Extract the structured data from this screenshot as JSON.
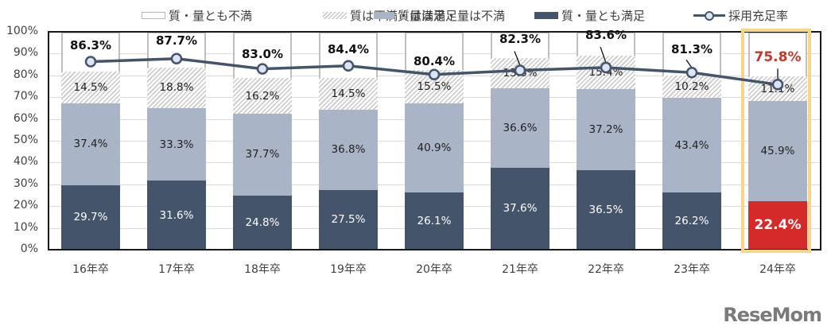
{
  "legend": {
    "items": [
      {
        "label": "質・量とも不満",
        "type": "white"
      },
      {
        "label": "質は不満・量は満足",
        "type": "hatch"
      },
      {
        "label": "質は満足・量は不満",
        "type": "light"
      },
      {
        "label": "質・量とも満足",
        "type": "dark"
      },
      {
        "label": "採用充足率",
        "type": "line"
      }
    ]
  },
  "y_ticks": [
    "100%",
    "90%",
    "80%",
    "70%",
    "60%",
    "50%",
    "40%",
    "30%",
    "20%",
    "10%",
    "0%"
  ],
  "categories": [
    "16年卒",
    "17年卒",
    "18年卒",
    "19年卒",
    "20年卒",
    "21年卒",
    "22年卒",
    "23年卒",
    "24年卒"
  ],
  "labels": {
    "dark": [
      "29.7%",
      "31.6%",
      "24.8%",
      "27.5%",
      "26.1%",
      "37.6%",
      "36.5%",
      "26.2%",
      "22.4%"
    ],
    "light": [
      "37.4%",
      "33.3%",
      "37.7%",
      "36.8%",
      "40.9%",
      "36.6%",
      "37.2%",
      "43.4%",
      "45.9%"
    ],
    "hatch": [
      "14.5%",
      "18.8%",
      "16.2%",
      "14.5%",
      "15.5%",
      "13.6%",
      "15.4%",
      "10.2%",
      "11.1%"
    ],
    "rate": [
      "86.3%",
      "87.7%",
      "83.0%",
      "84.4%",
      "80.4%",
      "82.3%",
      "83.6%",
      "81.3%",
      "75.8%"
    ]
  },
  "colors": {
    "dark": "#44546a",
    "light": "#a9b4c6",
    "hatch": "#c8c8c8",
    "highlight_bar": "#d42a2a",
    "highlight_box": "#f7d58a",
    "highlight_text": "#c0392b",
    "line": "#44546a",
    "marker_fill": "#dbe5f5"
  },
  "watermark": "ReseMom",
  "chart_data": {
    "type": "bar",
    "stacked": true,
    "title": "",
    "xlabel": "",
    "ylabel": "",
    "ylim": [
      0,
      100
    ],
    "y_unit": "%",
    "grid": true,
    "legend_position": "top",
    "categories": [
      "16年卒",
      "17年卒",
      "18年卒",
      "19年卒",
      "20年卒",
      "21年卒",
      "22年卒",
      "23年卒",
      "24年卒"
    ],
    "series": [
      {
        "name": "質・量とも満足",
        "type": "bar",
        "values": [
          29.7,
          31.6,
          24.8,
          27.5,
          26.1,
          37.6,
          36.5,
          26.2,
          22.4
        ]
      },
      {
        "name": "質は満足・量は不満",
        "type": "bar",
        "values": [
          37.4,
          33.3,
          37.7,
          36.8,
          40.9,
          36.6,
          37.2,
          43.4,
          45.9
        ]
      },
      {
        "name": "質は不満・量は満足",
        "type": "bar",
        "values": [
          14.5,
          18.8,
          16.2,
          14.5,
          15.5,
          13.6,
          15.4,
          10.2,
          11.1
        ]
      },
      {
        "name": "質・量とも不満",
        "type": "bar",
        "values": [
          18.4,
          16.3,
          21.3,
          21.2,
          17.5,
          12.2,
          10.9,
          20.2,
          20.6
        ]
      },
      {
        "name": "採用充足率",
        "type": "line",
        "values": [
          86.3,
          87.7,
          83.0,
          84.4,
          80.4,
          82.3,
          83.6,
          81.3,
          75.8
        ]
      }
    ],
    "annotations": [
      "24年卒 highlighted with yellow box; 22.4% and 75.8% emphasized in red"
    ]
  }
}
